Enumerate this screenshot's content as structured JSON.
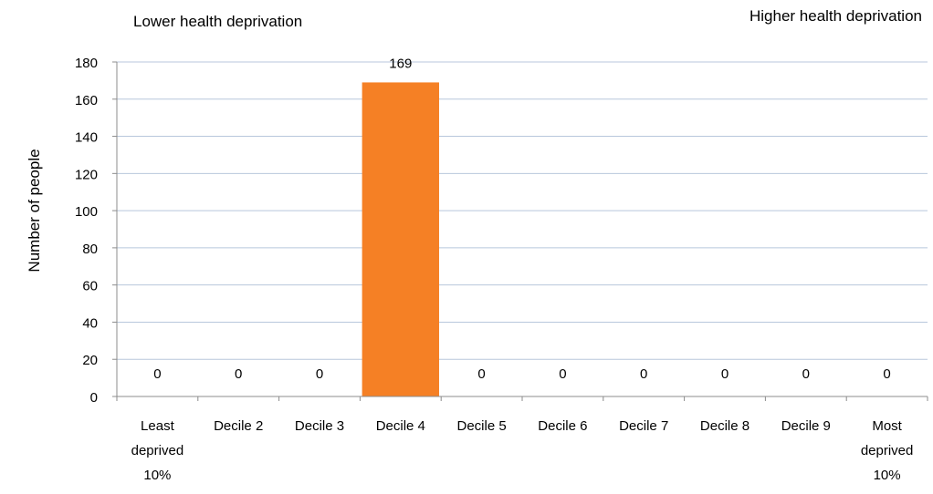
{
  "annotations": {
    "left": "Lower health deprivation",
    "right": "Higher health deprivation"
  },
  "chart_data": {
    "type": "bar",
    "title": "",
    "xlabel": "",
    "ylabel": "Number of people",
    "ylim": [
      0,
      180
    ],
    "yticks": [
      0,
      20,
      40,
      60,
      80,
      100,
      120,
      140,
      160,
      180
    ],
    "grid": true,
    "categories": [
      [
        "Least",
        "deprived",
        "10%"
      ],
      [
        "Decile 2"
      ],
      [
        "Decile 3"
      ],
      [
        "Decile 4"
      ],
      [
        "Decile 5"
      ],
      [
        "Decile 6"
      ],
      [
        "Decile 7"
      ],
      [
        "Decile 8"
      ],
      [
        "Decile 9"
      ],
      [
        "Most",
        "deprived",
        "10%"
      ]
    ],
    "values": [
      0,
      0,
      0,
      169,
      0,
      0,
      0,
      0,
      0,
      0
    ],
    "bar_color": "#F58025",
    "grid_color": "#B8C7DC",
    "axis_color": "#8C8C8C"
  }
}
